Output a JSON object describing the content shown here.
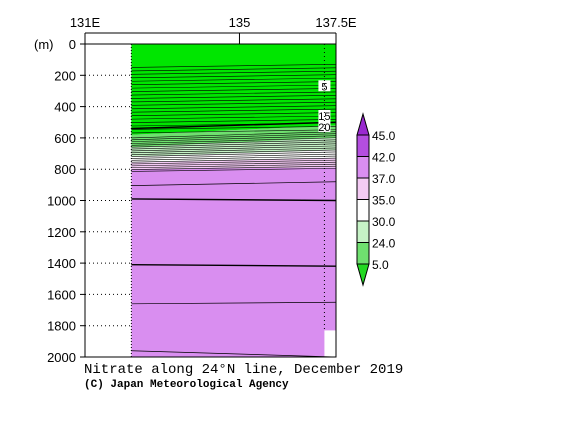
{
  "chart_data": {
    "type": "heatmap",
    "title": "Nitrate along 24°N line, December 2019",
    "credit": "(C) Japan Meteorological Agency",
    "x_axis": {
      "ticks": [
        {
          "label": "131E",
          "value": 131
        },
        {
          "label": "135",
          "value": 135
        },
        {
          "label": "137.5E",
          "value": 137.5
        }
      ],
      "range": [
        131,
        137.5
      ],
      "position": "top"
    },
    "y_axis": {
      "unit": "(m)",
      "ticks": [
        0,
        200,
        400,
        600,
        800,
        1000,
        1200,
        1400,
        1600,
        1800,
        2000
      ],
      "range": [
        0,
        2000
      ],
      "reversed": true
    },
    "data_extent": {
      "lon": [
        132.2,
        137.7
      ],
      "depth": [
        0,
        2000
      ]
    },
    "missing_region": {
      "lon": [
        137.2,
        137.7
      ],
      "depth": [
        1830,
        2000
      ]
    },
    "station_lon": 137.2,
    "colorbar": {
      "levels": [
        "45.0",
        "42.0",
        "37.0",
        "35.0",
        "30.0",
        "24.0",
        "5.0"
      ],
      "bands": [
        {
          "from": 42,
          "to": 45,
          "color": "#b44ee0"
        },
        {
          "from": 37,
          "to": 42,
          "color": "#d98ef0"
        },
        {
          "from": 35,
          "to": 37,
          "color": "#f4cbf4"
        },
        {
          "from": 30,
          "to": 35,
          "color": "#ffffff"
        },
        {
          "from": 24,
          "to": 30,
          "color": "#c6f2c6"
        },
        {
          "from": 5,
          "to": 24,
          "color": "#6fe06f"
        }
      ],
      "under_color": "#22d822",
      "over_color": "#9a2ad0"
    },
    "field_bands": [
      {
        "depth_left": 0,
        "depth_right": 0,
        "color": "#00e600"
      },
      {
        "depth_left": 580,
        "depth_right": 520,
        "color": "#6fe06f"
      },
      {
        "depth_left": 660,
        "depth_right": 600,
        "color": "#c6f2c6"
      },
      {
        "depth_left": 720,
        "depth_right": 680,
        "color": "#ffffff"
      },
      {
        "depth_left": 760,
        "depth_right": 730,
        "color": "#f4cbf4"
      },
      {
        "depth_left": 800,
        "depth_right": 790,
        "color": "#d98ef0"
      }
    ],
    "contour_labels": [
      {
        "text": "5",
        "lon": 137.2,
        "depth": 270
      },
      {
        "text": "15",
        "lon": 137.2,
        "depth": 460
      },
      {
        "text": "20",
        "lon": 137.2,
        "depth": 530
      }
    ]
  }
}
